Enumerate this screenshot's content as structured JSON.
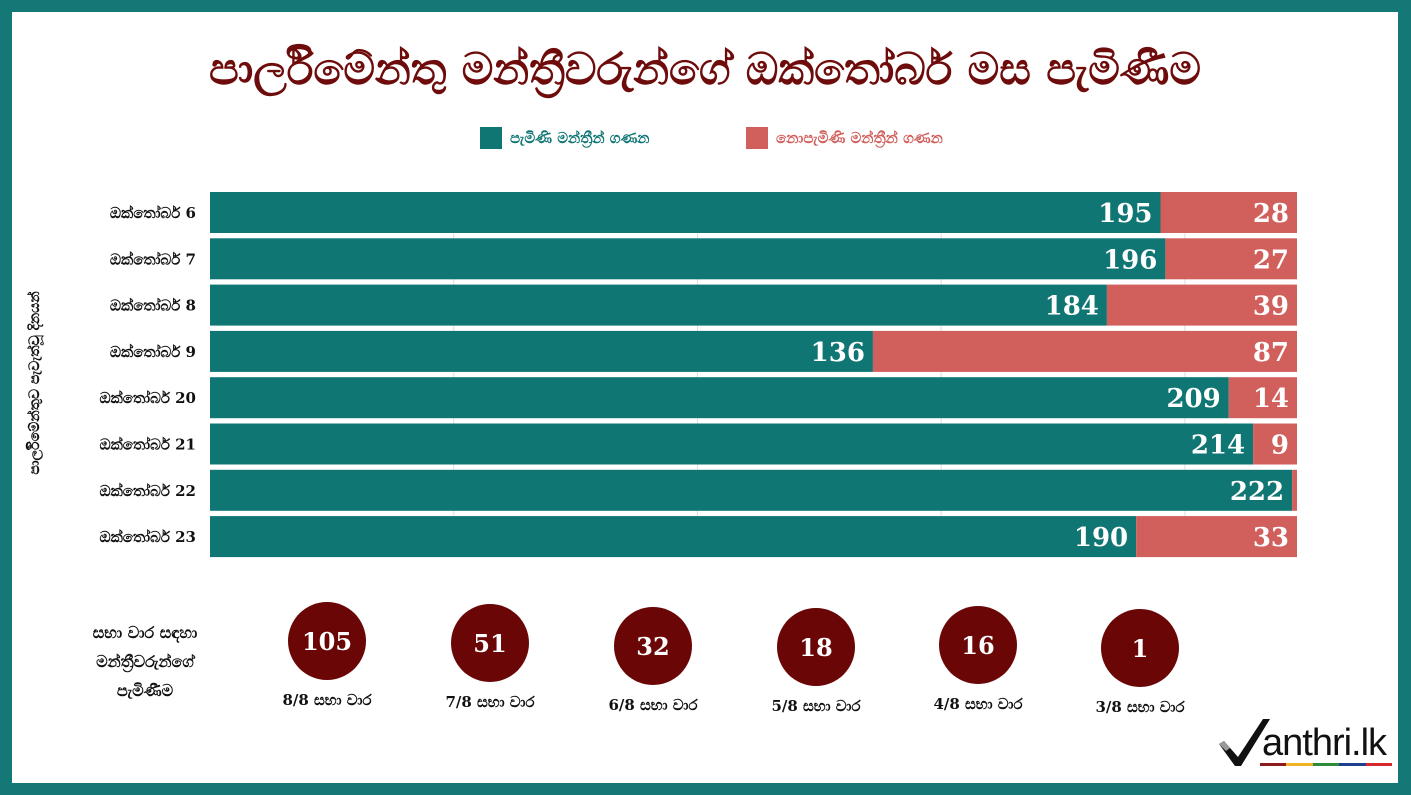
{
  "colors": {
    "frame": "#137876",
    "title": "#6e0b0b",
    "circle": "#6a0606"
  },
  "chart_data": {
    "type": "bar",
    "orientation": "horizontal",
    "stacked": true,
    "title": "පාර්ලිමේන්තු මන්ත්‍රීවරුන්ගේ ඔක්තෝබර් මස පැමිණීම",
    "ylabel": "පාර්ලිමේන්තුව පැවැත්වූ දිනයන්",
    "categories": [
      "ඔක්තෝබර් 6",
      "ඔක්තෝබර් 7",
      "ඔක්තෝබර් 8",
      "ඔක්තෝබර් 9",
      "ඔක්තෝබර් 20",
      "ඔක්තෝබර් 21",
      "ඔක්තෝබර් 22",
      "ඔක්තෝබර් 23"
    ],
    "series": [
      {
        "name": "පැමිණි මන්ත්‍රීන් ගණන",
        "color": "#0f7674",
        "values": [
          195,
          196,
          184,
          136,
          209,
          214,
          222,
          190
        ]
      },
      {
        "name": "නොපැමිණි මන්ත්‍රීන් ගණන",
        "color": "#d15f5c",
        "values": [
          28,
          27,
          39,
          87,
          14,
          9,
          1,
          33
        ]
      }
    ],
    "xlim": [
      0,
      223
    ],
    "x_gridlines": [
      50,
      100,
      150,
      200
    ],
    "grid": true,
    "legend": "top-center"
  },
  "sessions_summary": {
    "heading_lines": [
      "සභා වාර සඳහා",
      "මන්ත්‍රීවරුන්ගේ",
      "පැමිණීම"
    ],
    "items": [
      {
        "count": "105",
        "label": "8/8 සභා වාර"
      },
      {
        "count": "51",
        "label": "7/8 සභා වාර"
      },
      {
        "count": "32",
        "label": "6/8 සභා වාර"
      },
      {
        "count": "18",
        "label": "5/8 සභා වාර"
      },
      {
        "count": "16",
        "label": "4/8 සභා වාර"
      },
      {
        "count": "1",
        "label": "3/8 සභා වාර"
      }
    ]
  },
  "logo": {
    "icon": "checkmark-icon",
    "text": "anthri.lk",
    "stripe_colors": [
      "#8e1b1b",
      "#f0b323",
      "#2c8c3c",
      "#1d3f8f",
      "#d7282f"
    ]
  }
}
